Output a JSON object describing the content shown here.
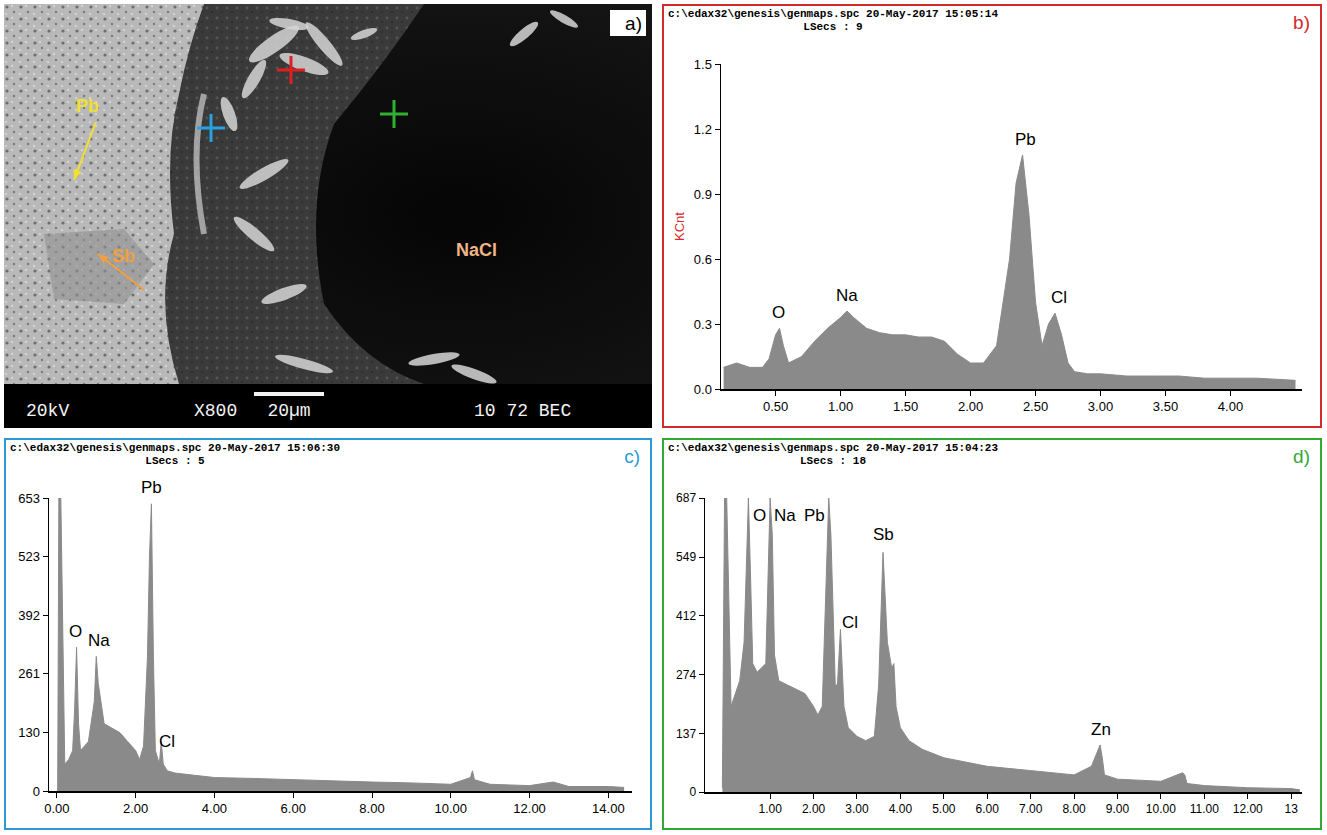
{
  "image": {
    "label": "a)",
    "labels": [
      {
        "text": "Pb",
        "color": "#f2e030"
      },
      {
        "text": "Sb",
        "color": "#f0a040"
      },
      {
        "text": "NaCl",
        "color": "#f0b488"
      }
    ],
    "footer": [
      "20kV",
      "X800",
      "20µm",
      "10 72 BEC"
    ],
    "markers": [
      "#e02020",
      "#2aa0e0",
      "#30b030"
    ]
  },
  "chart_data": [
    {
      "type": "area",
      "panel": {
        "label": "b)",
        "color": "#d42a2a"
      },
      "title": "c:\\edax32\\genesis\\genmaps.spc 20-May-2017 15:05:14",
      "subtitle": "LSecs : 9",
      "ylabel": "KCnt",
      "color": "#8a8a8a",
      "x": [
        0.1,
        0.2,
        0.3,
        0.4,
        0.45,
        0.5,
        0.53,
        0.56,
        0.6,
        0.7,
        0.8,
        0.9,
        1.0,
        1.05,
        1.1,
        1.2,
        1.3,
        1.4,
        1.5,
        1.6,
        1.7,
        1.8,
        1.9,
        2.0,
        2.1,
        2.2,
        2.3,
        2.35,
        2.4,
        2.45,
        2.5,
        2.55,
        2.6,
        2.65,
        2.7,
        2.75,
        2.8,
        2.9,
        3.0,
        3.2,
        3.4,
        3.6,
        3.8,
        4.0,
        4.2,
        4.5
      ],
      "values": [
        0.1,
        0.12,
        0.1,
        0.1,
        0.14,
        0.25,
        0.28,
        0.2,
        0.12,
        0.15,
        0.22,
        0.28,
        0.33,
        0.36,
        0.33,
        0.28,
        0.26,
        0.25,
        0.25,
        0.24,
        0.24,
        0.22,
        0.16,
        0.12,
        0.12,
        0.2,
        0.6,
        0.95,
        1.08,
        0.8,
        0.4,
        0.2,
        0.3,
        0.35,
        0.25,
        0.12,
        0.08,
        0.07,
        0.07,
        0.06,
        0.06,
        0.06,
        0.05,
        0.05,
        0.05,
        0.04
      ],
      "xlim": [
        0.08,
        4.55
      ],
      "xticks": [
        {
          "value": 0.5,
          "label": "0.50"
        },
        {
          "value": 1,
          "label": "1.00"
        },
        {
          "value": 1.5,
          "label": "1.50"
        },
        {
          "value": 2,
          "label": "2.00"
        },
        {
          "value": 2.5,
          "label": "2.50"
        },
        {
          "value": 3,
          "label": "3.00"
        },
        {
          "value": 3.5,
          "label": "3.50"
        },
        {
          "value": 4,
          "label": "4.00"
        }
      ],
      "ylim": [
        0,
        1.5
      ],
      "yticks": [
        {
          "value": 0,
          "label": "0.0"
        },
        0.3,
        0.6,
        0.9,
        1.2,
        1.5
      ],
      "annotations": [
        {
          "text": "O",
          "x": 0.52,
          "y": 0.3
        },
        {
          "text": "Na",
          "x": 1.05,
          "y": 0.38
        },
        {
          "text": "Pb",
          "x": 2.42,
          "y": 1.1
        },
        {
          "text": "Cl",
          "x": 2.68,
          "y": 0.37
        }
      ]
    },
    {
      "type": "area",
      "panel": {
        "label": "c)",
        "color": "#2a9ad4"
      },
      "title": "c:\\edax32\\genesis\\genmaps.spc 20-May-2017 15:06:30",
      "subtitle": "LSecs : 5",
      "color": "#8a8a8a",
      "x": [
        0.02,
        0.05,
        0.1,
        0.2,
        0.3,
        0.4,
        0.45,
        0.5,
        0.55,
        0.6,
        0.8,
        0.95,
        1.0,
        1.05,
        1.2,
        1.4,
        1.6,
        1.8,
        2.0,
        2.1,
        2.2,
        2.3,
        2.35,
        2.4,
        2.45,
        2.5,
        2.6,
        2.65,
        2.7,
        2.8,
        3.0,
        3.5,
        4.0,
        5.0,
        6.0,
        7.0,
        8.0,
        9.0,
        10.0,
        10.5,
        10.55,
        10.6,
        11.0,
        12.0,
        12.6,
        13.0,
        14.0,
        14.4
      ],
      "values": [
        0,
        653,
        653,
        60,
        70,
        90,
        180,
        320,
        150,
        90,
        110,
        200,
        300,
        240,
        150,
        140,
        130,
        110,
        90,
        70,
        100,
        300,
        520,
        640,
        300,
        90,
        60,
        110,
        60,
        45,
        40,
        35,
        30,
        28,
        25,
        22,
        20,
        18,
        15,
        30,
        45,
        25,
        15,
        12,
        20,
        10,
        10,
        8
      ],
      "xlim": [
        -0.2,
        14.6
      ],
      "xticks": [
        {
          "value": 0,
          "label": "0.00"
        },
        {
          "value": 2,
          "label": "2.00"
        },
        {
          "value": 4,
          "label": "4.00"
        },
        {
          "value": 6,
          "label": "6.00"
        },
        {
          "value": 8,
          "label": "8.00"
        },
        {
          "value": 10,
          "label": "10.00"
        },
        {
          "value": 12,
          "label": "12.00"
        },
        {
          "value": 14,
          "label": "14.00"
        }
      ],
      "ylim": [
        0,
        653
      ],
      "yticks": [
        0,
        130,
        261,
        392,
        523,
        653
      ],
      "annotations": [
        {
          "text": "O",
          "x": 0.48,
          "y": 330
        },
        {
          "text": "Na",
          "x": 1.08,
          "y": 310
        },
        {
          "text": "Pb",
          "x": 2.4,
          "y": 650
        },
        {
          "text": "Cl",
          "x": 2.8,
          "y": 85
        }
      ]
    },
    {
      "type": "area",
      "panel": {
        "label": "d)",
        "color": "#34a834"
      },
      "title": "c:\\edax32\\genesis\\genmaps.spc 20-May-2017 15:04:23",
      "subtitle": "LSecs : 18",
      "color": "#8a8a8a",
      "x": [
        -0.1,
        -0.05,
        0.0,
        0.1,
        0.2,
        0.3,
        0.4,
        0.5,
        0.55,
        0.6,
        0.7,
        0.8,
        0.9,
        1.0,
        1.05,
        1.1,
        1.2,
        1.4,
        1.6,
        1.8,
        2.0,
        2.1,
        2.2,
        2.3,
        2.35,
        2.4,
        2.5,
        2.55,
        2.62,
        2.7,
        2.8,
        3.0,
        3.2,
        3.4,
        3.5,
        3.6,
        3.7,
        3.8,
        3.85,
        3.9,
        4.0,
        4.2,
        4.5,
        5.0,
        5.5,
        6.0,
        7.0,
        8.0,
        8.4,
        8.6,
        8.65,
        8.7,
        9.0,
        10.0,
        10.5,
        10.55,
        10.6,
        11.0,
        12.0,
        13.0,
        13.2
      ],
      "values": [
        10,
        687,
        687,
        200,
        230,
        260,
        350,
        687,
        500,
        300,
        280,
        290,
        300,
        687,
        600,
        320,
        260,
        250,
        240,
        230,
        200,
        180,
        200,
        500,
        687,
        600,
        250,
        250,
        380,
        200,
        150,
        130,
        120,
        130,
        250,
        560,
        350,
        290,
        300,
        200,
        150,
        120,
        100,
        80,
        70,
        60,
        50,
        40,
        60,
        110,
        80,
        40,
        30,
        25,
        45,
        40,
        20,
        15,
        10,
        8,
        5
      ],
      "xlim": [
        -0.5,
        13.25
      ],
      "xticks": [
        {
          "value": 1,
          "label": "1.00"
        },
        {
          "value": 2,
          "label": "2.00"
        },
        {
          "value": 3,
          "label": "3.00"
        },
        {
          "value": 4,
          "label": "4.00"
        },
        {
          "value": 5,
          "label": "5.00"
        },
        {
          "value": 6,
          "label": "6.00"
        },
        {
          "value": 7,
          "label": "7.00"
        },
        {
          "value": 8,
          "label": "8.00"
        },
        {
          "value": 9,
          "label": "9.00"
        },
        {
          "value": 10,
          "label": "10.00"
        },
        {
          "value": 11,
          "label": "11.00"
        },
        {
          "value": 12,
          "label": "12.00"
        },
        13
      ],
      "ylim": [
        0,
        687
      ],
      "yticks": [
        0,
        137,
        274,
        412,
        549,
        687
      ],
      "annotations": [
        {
          "text": "O",
          "x": 0.75,
          "y": 620
        },
        {
          "text": "Na",
          "x": 1.35,
          "y": 620
        },
        {
          "text": "Pb",
          "x": 2.02,
          "y": 620
        },
        {
          "text": "Cl",
          "x": 2.85,
          "y": 370
        },
        {
          "text": "Sb",
          "x": 3.6,
          "y": 575
        },
        {
          "text": "Zn",
          "x": 8.62,
          "y": 120
        }
      ]
    }
  ]
}
